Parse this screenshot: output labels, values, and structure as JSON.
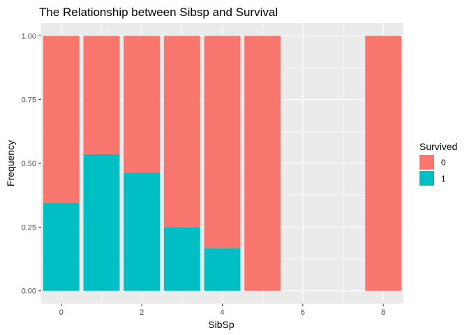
{
  "chart_data": {
    "type": "bar",
    "stacked": true,
    "position": "fill",
    "title": "The Relationship between Sibsp and Survival",
    "xlabel": "SibSp",
    "ylabel": "Frequency",
    "x": [
      0,
      1,
      2,
      3,
      4,
      5,
      8
    ],
    "x_ticks": [
      "0",
      "2",
      "4",
      "6",
      "8"
    ],
    "x_tick_values": [
      0,
      2,
      4,
      6,
      8
    ],
    "y_ticks": [
      "0.00",
      "0.25",
      "0.50",
      "0.75",
      "1.00"
    ],
    "y_tick_values": [
      0,
      0.25,
      0.5,
      0.75,
      1.0
    ],
    "xlim": [
      -0.5,
      8.5
    ],
    "ylim": [
      0,
      1
    ],
    "grid": true,
    "legend": {
      "title": "Survived",
      "placement": "right"
    },
    "series": [
      {
        "name": "0",
        "color": "#F8766D",
        "values": [
          0.655,
          0.464,
          0.536,
          0.75,
          0.833,
          1.0,
          1.0
        ]
      },
      {
        "name": "1",
        "color": "#00BFC4",
        "values": [
          0.345,
          0.536,
          0.464,
          0.25,
          0.167,
          0.0,
          0.0
        ]
      }
    ]
  }
}
